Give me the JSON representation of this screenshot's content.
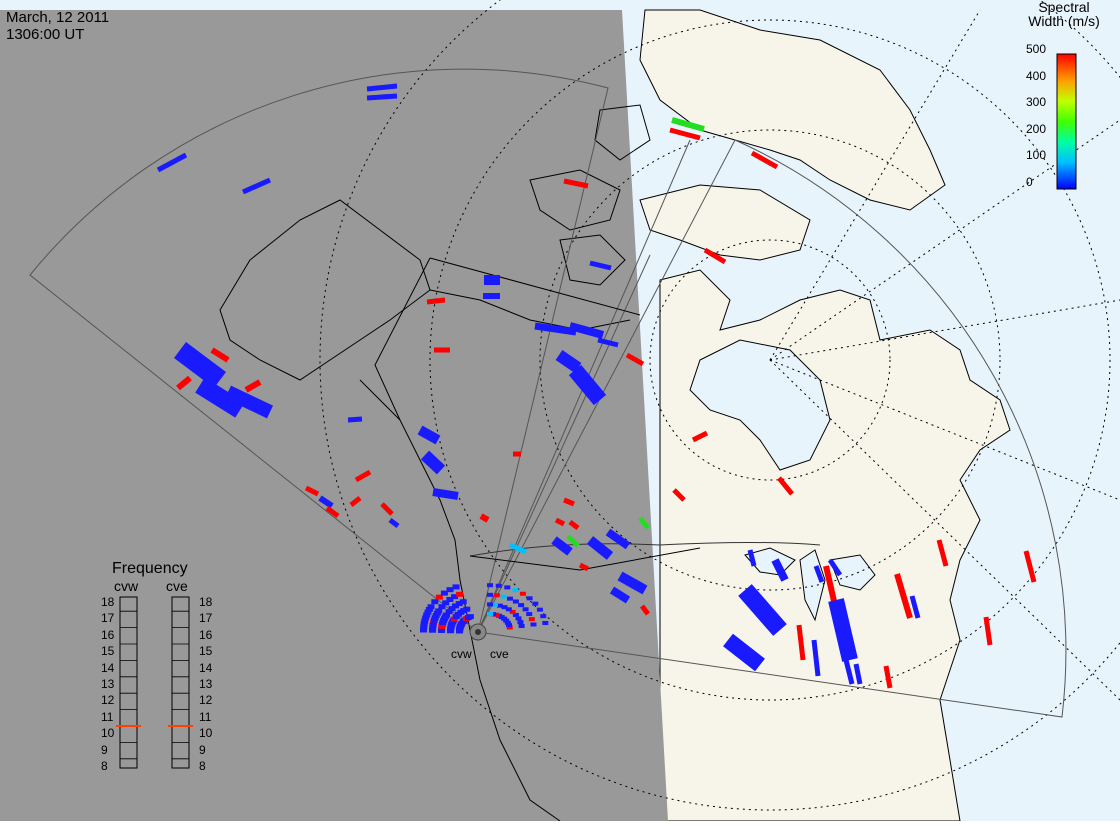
{
  "header": {
    "date": "March, 12 2011",
    "time": "1306:00 UT"
  },
  "colorbar": {
    "title_line1": "Spectral",
    "title_line2": "Width (m/s)",
    "ticks": [
      "500",
      "400",
      "300",
      "200",
      "100",
      "0"
    ],
    "colors": [
      "#ff0000",
      "#ff8000",
      "#ffff00",
      "#00ff00",
      "#00ffff",
      "#0000ff"
    ]
  },
  "frequency_panel": {
    "title": "Frequency",
    "left_label": "cvw",
    "right_label": "cve",
    "levels": [
      "18",
      "17",
      "16",
      "15",
      "14",
      "13",
      "12",
      "11",
      "10",
      "9",
      "8"
    ],
    "cvw_value_mhz": 10.5,
    "cve_value_mhz": 10.5,
    "marker_color": "#ff4000"
  },
  "radars": {
    "west": "cvw",
    "east": "cve"
  },
  "map": {
    "night_color": "#999999",
    "ocean_color": "#e8f4fc",
    "land_color": "#f7f5ea"
  }
}
